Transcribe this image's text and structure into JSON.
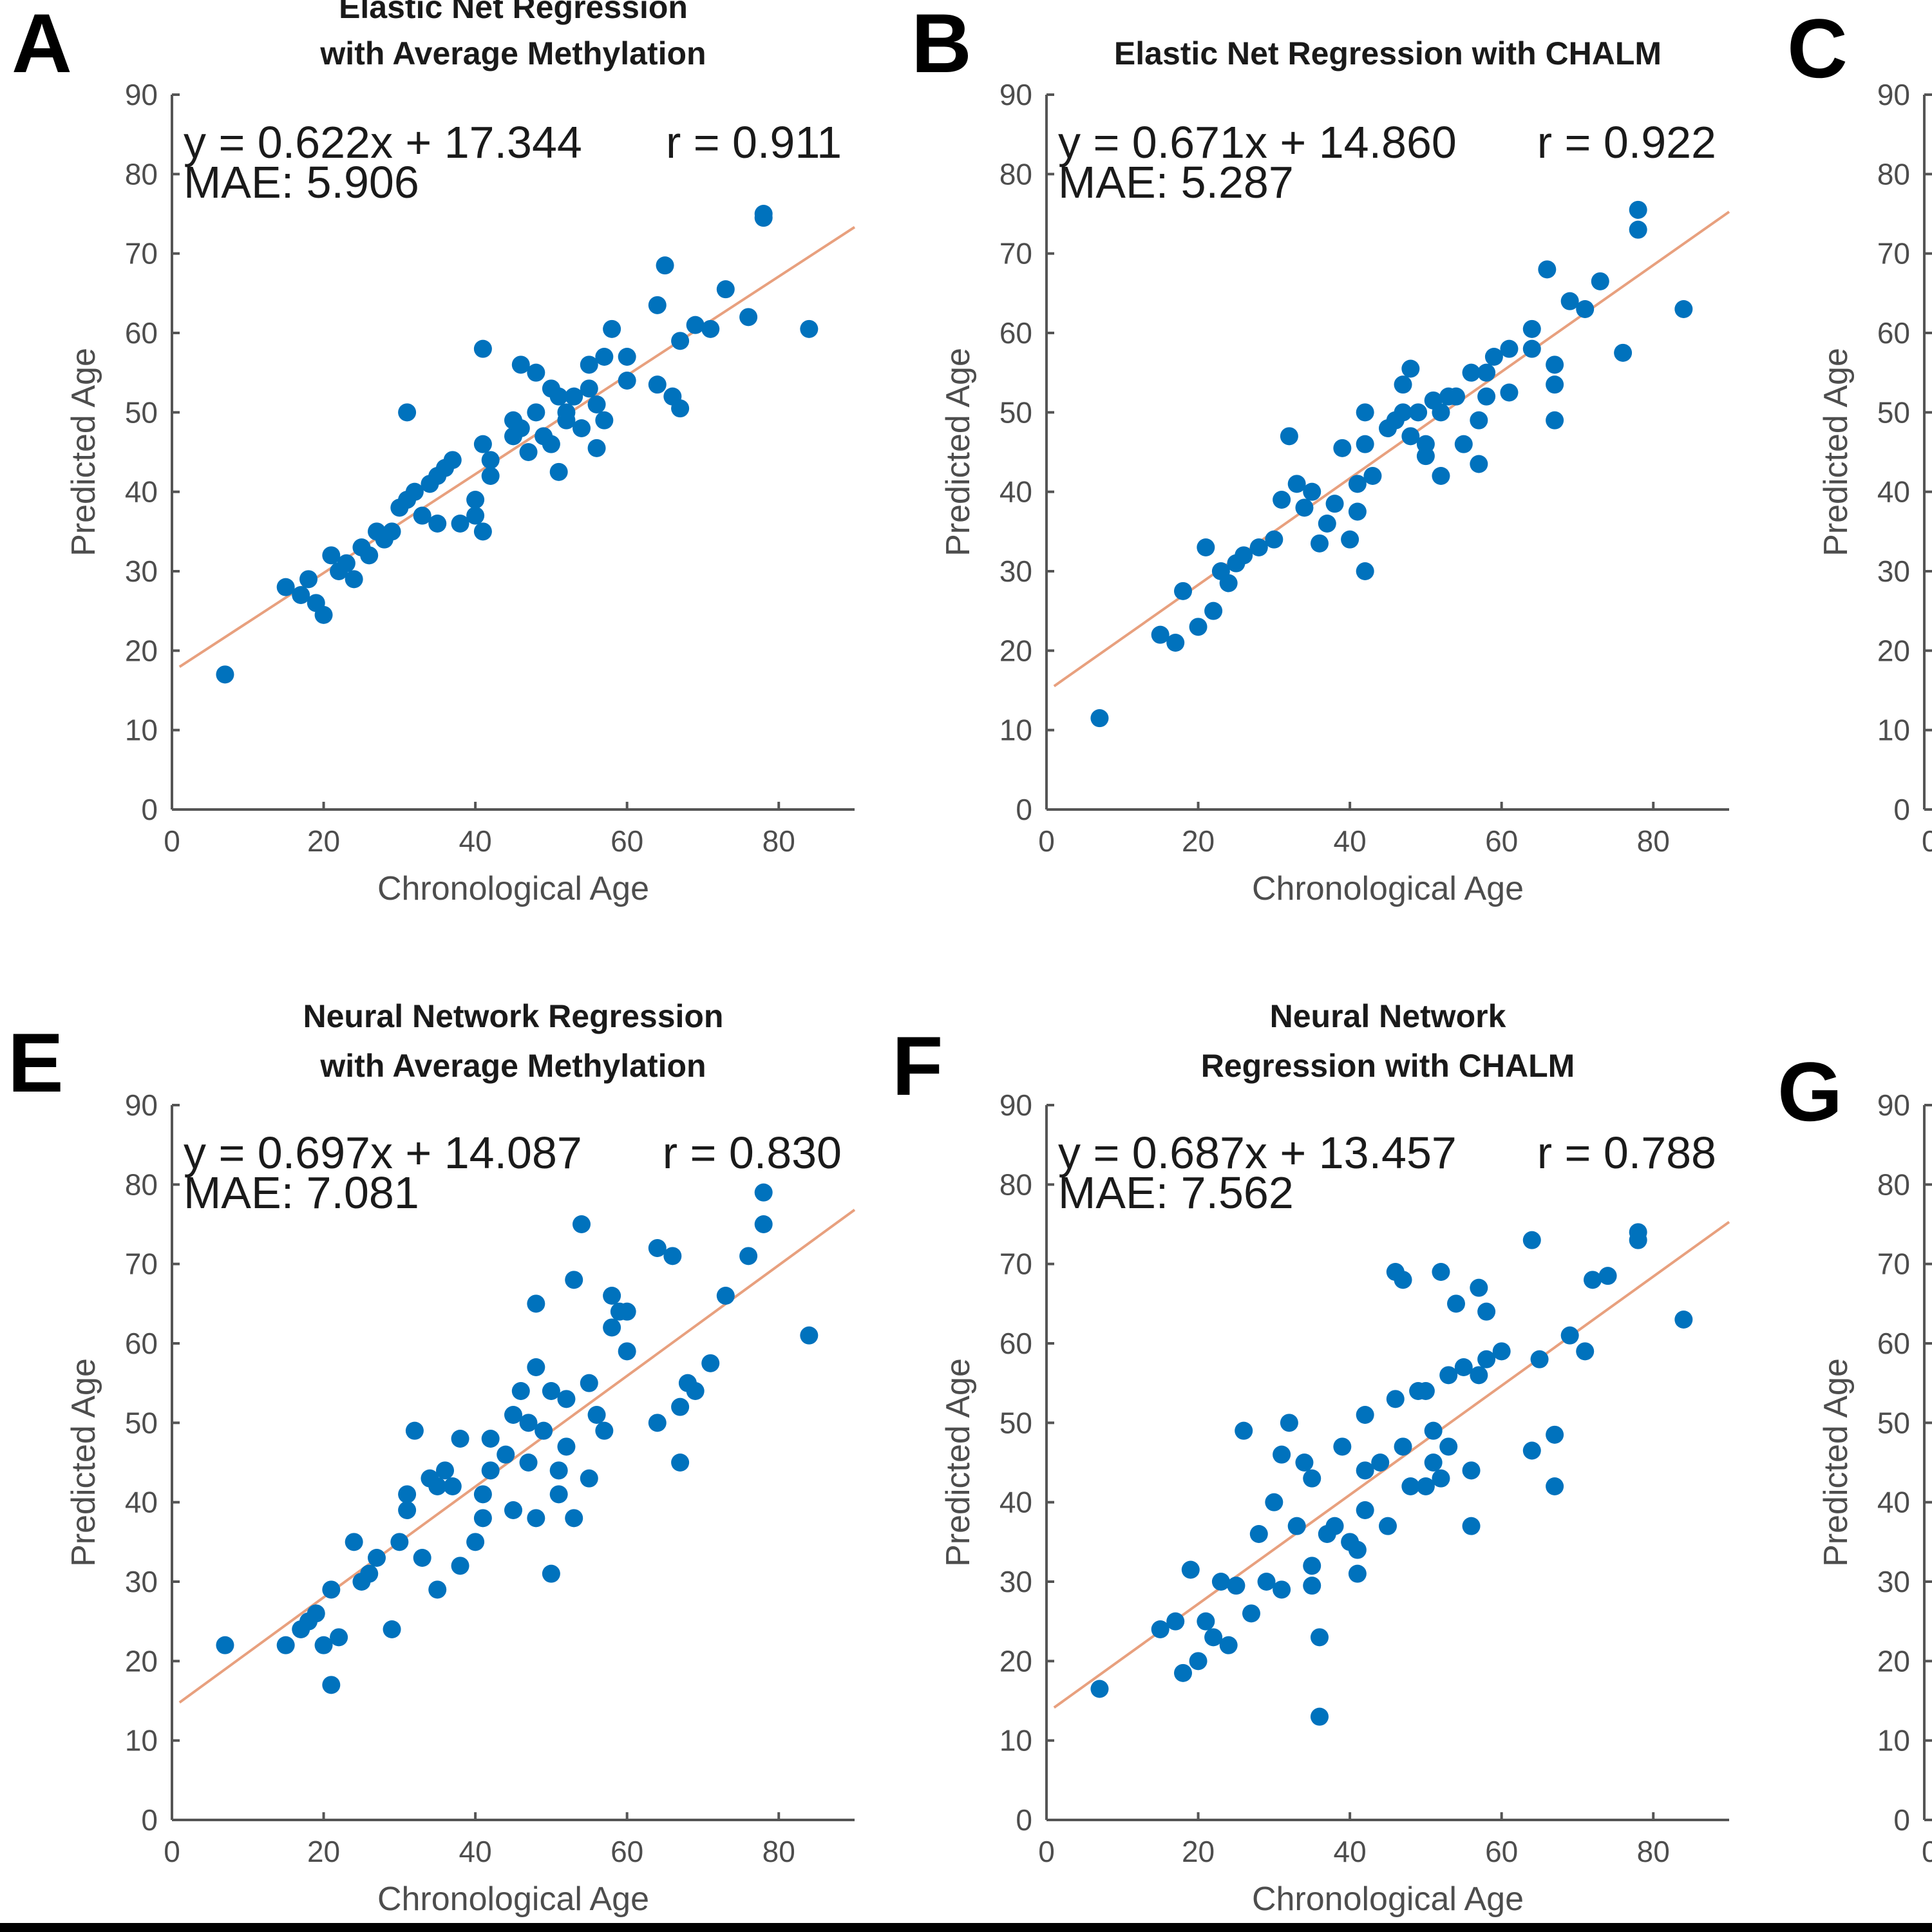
{
  "figure": {
    "accent_color": "#0072bd",
    "fit_color": "#e8a07e",
    "clipped_panels": [
      {
        "letter": "C",
        "y_ticks": [
          "0",
          "10",
          "20",
          "30",
          "40",
          "50",
          "60",
          "70",
          "80",
          "90"
        ],
        "y_label": "Predicted Age",
        "x_tick_first": "0"
      },
      {
        "letter": "G",
        "y_ticks": [
          "0",
          "10",
          "20",
          "30",
          "40",
          "50",
          "60",
          "70",
          "80",
          "90"
        ],
        "y_label": "Predicted Age",
        "x_tick_first": "0"
      }
    ]
  },
  "chart_data": [
    {
      "letter": "A",
      "type": "scatter",
      "title_lines": [
        "Elastic Net Regression",
        "with Average Methylation"
      ],
      "xlabel": "Chronological Age",
      "ylabel": "Predicted Age",
      "xlim": [
        0,
        90
      ],
      "ylim": [
        0,
        90
      ],
      "x_ticks": [
        "0",
        "20",
        "40",
        "60",
        "80"
      ],
      "y_ticks": [
        "0",
        "10",
        "20",
        "30",
        "40",
        "50",
        "60",
        "70",
        "80",
        "90"
      ],
      "equation": "y = 0.622x + 17.344",
      "r_text": "r = 0.911",
      "mae_text": "MAE: 5.906",
      "fit": {
        "slope": 0.622,
        "intercept": 17.344
      },
      "points": [
        [
          7,
          17
        ],
        [
          15,
          28
        ],
        [
          17,
          27
        ],
        [
          18,
          29
        ],
        [
          19,
          26
        ],
        [
          20,
          24.5
        ],
        [
          21,
          32
        ],
        [
          22,
          30
        ],
        [
          23,
          31
        ],
        [
          24,
          29
        ],
        [
          25,
          33
        ],
        [
          26,
          32
        ],
        [
          27,
          35
        ],
        [
          28,
          34
        ],
        [
          29,
          35
        ],
        [
          30,
          38
        ],
        [
          31,
          39
        ],
        [
          31,
          50
        ],
        [
          32,
          40
        ],
        [
          33,
          37
        ],
        [
          34,
          41
        ],
        [
          35,
          36
        ],
        [
          35,
          42
        ],
        [
          36,
          43
        ],
        [
          37,
          44
        ],
        [
          38,
          36
        ],
        [
          40,
          39
        ],
        [
          40,
          37
        ],
        [
          41,
          35
        ],
        [
          41,
          46
        ],
        [
          41,
          58
        ],
        [
          42,
          44
        ],
        [
          42,
          42
        ],
        [
          45,
          47
        ],
        [
          45,
          49
        ],
        [
          46,
          48
        ],
        [
          46,
          56
        ],
        [
          47,
          45
        ],
        [
          48,
          50
        ],
        [
          48,
          55
        ],
        [
          49,
          47
        ],
        [
          50,
          53
        ],
        [
          50,
          46
        ],
        [
          51,
          52
        ],
        [
          51,
          42.5
        ],
        [
          52,
          49
        ],
        [
          52,
          50
        ],
        [
          53,
          52
        ],
        [
          54,
          48
        ],
        [
          55,
          56
        ],
        [
          55,
          53
        ],
        [
          56,
          45.5
        ],
        [
          56,
          51
        ],
        [
          57,
          57
        ],
        [
          57,
          49
        ],
        [
          58,
          60.5
        ],
        [
          60,
          57
        ],
        [
          60,
          54
        ],
        [
          64,
          53.5
        ],
        [
          64,
          63.5
        ],
        [
          65,
          68.5
        ],
        [
          66,
          52
        ],
        [
          67,
          50.5
        ],
        [
          67,
          59
        ],
        [
          69,
          61
        ],
        [
          71,
          60.5
        ],
        [
          73,
          65.5
        ],
        [
          76,
          62
        ],
        [
          78,
          75
        ],
        [
          78,
          74.5
        ],
        [
          84,
          60.5
        ]
      ]
    },
    {
      "letter": "B",
      "type": "scatter",
      "title_lines": [
        "Elastic Net Regression with CHALM"
      ],
      "xlabel": "Chronological Age",
      "ylabel": "Predicted Age",
      "xlim": [
        0,
        90
      ],
      "ylim": [
        0,
        90
      ],
      "x_ticks": [
        "0",
        "20",
        "40",
        "60",
        "80"
      ],
      "y_ticks": [
        "0",
        "10",
        "20",
        "30",
        "40",
        "50",
        "60",
        "70",
        "80",
        "90"
      ],
      "equation": "y = 0.671x + 14.860",
      "r_text": "r = 0.922",
      "mae_text": "MAE: 5.287",
      "fit": {
        "slope": 0.671,
        "intercept": 14.86
      },
      "points": [
        [
          7,
          11.5
        ],
        [
          15,
          22
        ],
        [
          17,
          21
        ],
        [
          18,
          27.5
        ],
        [
          20,
          23
        ],
        [
          21,
          33
        ],
        [
          22,
          25
        ],
        [
          23,
          30
        ],
        [
          24,
          28.5
        ],
        [
          25,
          31
        ],
        [
          26,
          32
        ],
        [
          28,
          33
        ],
        [
          30,
          34
        ],
        [
          31,
          39
        ],
        [
          32,
          47
        ],
        [
          33,
          41
        ],
        [
          34,
          38
        ],
        [
          35,
          40
        ],
        [
          36,
          33.5
        ],
        [
          37,
          36
        ],
        [
          38,
          38.5
        ],
        [
          39,
          45.5
        ],
        [
          40,
          34
        ],
        [
          41,
          37.5
        ],
        [
          41,
          41
        ],
        [
          42,
          30
        ],
        [
          42,
          50
        ],
        [
          42,
          46
        ],
        [
          43,
          42
        ],
        [
          45,
          48
        ],
        [
          46,
          49
        ],
        [
          47,
          50
        ],
        [
          47,
          53.5
        ],
        [
          48,
          55.5
        ],
        [
          48,
          47
        ],
        [
          49,
          50
        ],
        [
          50,
          46
        ],
        [
          50,
          44.5
        ],
        [
          51,
          51.5
        ],
        [
          52,
          50
        ],
        [
          52,
          42
        ],
        [
          53,
          52
        ],
        [
          54,
          52
        ],
        [
          55,
          46
        ],
        [
          56,
          55
        ],
        [
          57,
          49
        ],
        [
          57,
          43.5
        ],
        [
          58,
          55
        ],
        [
          58,
          52
        ],
        [
          59,
          57
        ],
        [
          61,
          58
        ],
        [
          61,
          52.5
        ],
        [
          64,
          60.5
        ],
        [
          64,
          58
        ],
        [
          66,
          68
        ],
        [
          67,
          56
        ],
        [
          67,
          53.5
        ],
        [
          67,
          49
        ],
        [
          69,
          64
        ],
        [
          71,
          63
        ],
        [
          73,
          66.5
        ],
        [
          76,
          57.5
        ],
        [
          78,
          75.5
        ],
        [
          78,
          73
        ],
        [
          84,
          63
        ]
      ]
    },
    {
      "letter": "E",
      "type": "scatter",
      "title_lines": [
        "Neural Network Regression",
        "with Average Methylation"
      ],
      "xlabel": "Chronological Age",
      "ylabel": "Predicted Age",
      "xlim": [
        0,
        90
      ],
      "ylim": [
        0,
        90
      ],
      "x_ticks": [
        "0",
        "20",
        "40",
        "60",
        "80"
      ],
      "y_ticks": [
        "0",
        "10",
        "20",
        "30",
        "40",
        "50",
        "60",
        "70",
        "80",
        "90"
      ],
      "equation": "y = 0.697x + 14.087",
      "r_text": "r = 0.830",
      "mae_text": "MAE: 7.081",
      "fit": {
        "slope": 0.697,
        "intercept": 14.087
      },
      "points": [
        [
          7,
          22
        ],
        [
          15,
          22
        ],
        [
          17,
          24
        ],
        [
          18,
          25
        ],
        [
          19,
          26
        ],
        [
          20,
          22
        ],
        [
          21,
          29
        ],
        [
          21,
          17
        ],
        [
          22,
          23
        ],
        [
          24,
          35
        ],
        [
          25,
          30
        ],
        [
          26,
          31
        ],
        [
          27,
          33
        ],
        [
          29,
          24
        ],
        [
          30,
          35
        ],
        [
          31,
          41
        ],
        [
          31,
          39
        ],
        [
          32,
          49
        ],
        [
          33,
          33
        ],
        [
          34,
          43
        ],
        [
          35,
          42
        ],
        [
          35,
          29
        ],
        [
          36,
          44
        ],
        [
          37,
          42
        ],
        [
          38,
          48
        ],
        [
          38,
          32
        ],
        [
          40,
          35
        ],
        [
          41,
          41
        ],
        [
          41,
          38
        ],
        [
          42,
          44
        ],
        [
          42,
          48
        ],
        [
          44,
          46
        ],
        [
          45,
          51
        ],
        [
          45,
          39
        ],
        [
          46,
          54
        ],
        [
          47,
          50
        ],
        [
          47,
          45
        ],
        [
          48,
          38
        ],
        [
          48,
          57
        ],
        [
          48,
          65
        ],
        [
          49,
          49
        ],
        [
          50,
          54
        ],
        [
          50,
          31
        ],
        [
          51,
          41
        ],
        [
          51,
          44
        ],
        [
          52,
          53
        ],
        [
          52,
          47
        ],
        [
          53,
          38
        ],
        [
          53,
          68
        ],
        [
          54,
          75
        ],
        [
          55,
          55
        ],
        [
          55,
          43
        ],
        [
          56,
          51
        ],
        [
          57,
          49
        ],
        [
          58,
          62
        ],
        [
          58,
          66
        ],
        [
          59,
          64
        ],
        [
          60,
          59
        ],
        [
          60,
          64
        ],
        [
          64,
          50
        ],
        [
          64,
          72
        ],
        [
          66,
          71
        ],
        [
          67,
          52
        ],
        [
          67,
          45
        ],
        [
          68,
          55
        ],
        [
          69,
          54
        ],
        [
          71,
          57.5
        ],
        [
          73,
          66
        ],
        [
          76,
          71
        ],
        [
          78,
          79
        ],
        [
          78,
          75
        ],
        [
          84,
          61
        ]
      ]
    },
    {
      "letter": "F",
      "type": "scatter",
      "title_lines": [
        "Neural Network",
        "Regression with CHALM"
      ],
      "xlabel": "Chronological Age",
      "ylabel": "Predicted Age",
      "xlim": [
        0,
        90
      ],
      "ylim": [
        0,
        90
      ],
      "x_ticks": [
        "0",
        "20",
        "40",
        "60",
        "80"
      ],
      "y_ticks": [
        "0",
        "10",
        "20",
        "30",
        "40",
        "50",
        "60",
        "70",
        "80",
        "90"
      ],
      "equation": "y = 0.687x + 13.457",
      "r_text": "r = 0.788",
      "mae_text": "MAE: 7.562",
      "fit": {
        "slope": 0.687,
        "intercept": 13.457
      },
      "points": [
        [
          7,
          16.5
        ],
        [
          15,
          24
        ],
        [
          17,
          25
        ],
        [
          18,
          18.5
        ],
        [
          19,
          31.5
        ],
        [
          20,
          20
        ],
        [
          21,
          25
        ],
        [
          22,
          23
        ],
        [
          23,
          30
        ],
        [
          24,
          22
        ],
        [
          25,
          29.5
        ],
        [
          26,
          49
        ],
        [
          27,
          26
        ],
        [
          28,
          36
        ],
        [
          29,
          30
        ],
        [
          30,
          40
        ],
        [
          31,
          29
        ],
        [
          31,
          46
        ],
        [
          32,
          50
        ],
        [
          33,
          37
        ],
        [
          34,
          45
        ],
        [
          35,
          32
        ],
        [
          35,
          43
        ],
        [
          35,
          29.5
        ],
        [
          36,
          23
        ],
        [
          36,
          13
        ],
        [
          37,
          36
        ],
        [
          38,
          37
        ],
        [
          39,
          47
        ],
        [
          40,
          35
        ],
        [
          41,
          34
        ],
        [
          41,
          31
        ],
        [
          42,
          44
        ],
        [
          42,
          39
        ],
        [
          42,
          51
        ],
        [
          44,
          45
        ],
        [
          45,
          37
        ],
        [
          46,
          53
        ],
        [
          46,
          69
        ],
        [
          47,
          47
        ],
        [
          47,
          68
        ],
        [
          48,
          42
        ],
        [
          49,
          54
        ],
        [
          50,
          42
        ],
        [
          50,
          54
        ],
        [
          51,
          49
        ],
        [
          51,
          45
        ],
        [
          52,
          43
        ],
        [
          52,
          69
        ],
        [
          53,
          47
        ],
        [
          53,
          56
        ],
        [
          54,
          65
        ],
        [
          55,
          57
        ],
        [
          56,
          44
        ],
        [
          56,
          37
        ],
        [
          57,
          67
        ],
        [
          57,
          56
        ],
        [
          58,
          58
        ],
        [
          58,
          64
        ],
        [
          60,
          59
        ],
        [
          64,
          73
        ],
        [
          64,
          46.5
        ],
        [
          65,
          58
        ],
        [
          67,
          42
        ],
        [
          67,
          48.5
        ],
        [
          69,
          61
        ],
        [
          71,
          59
        ],
        [
          72,
          68
        ],
        [
          74,
          68.5
        ],
        [
          78,
          74
        ],
        [
          78,
          73
        ],
        [
          84,
          63
        ]
      ]
    }
  ]
}
